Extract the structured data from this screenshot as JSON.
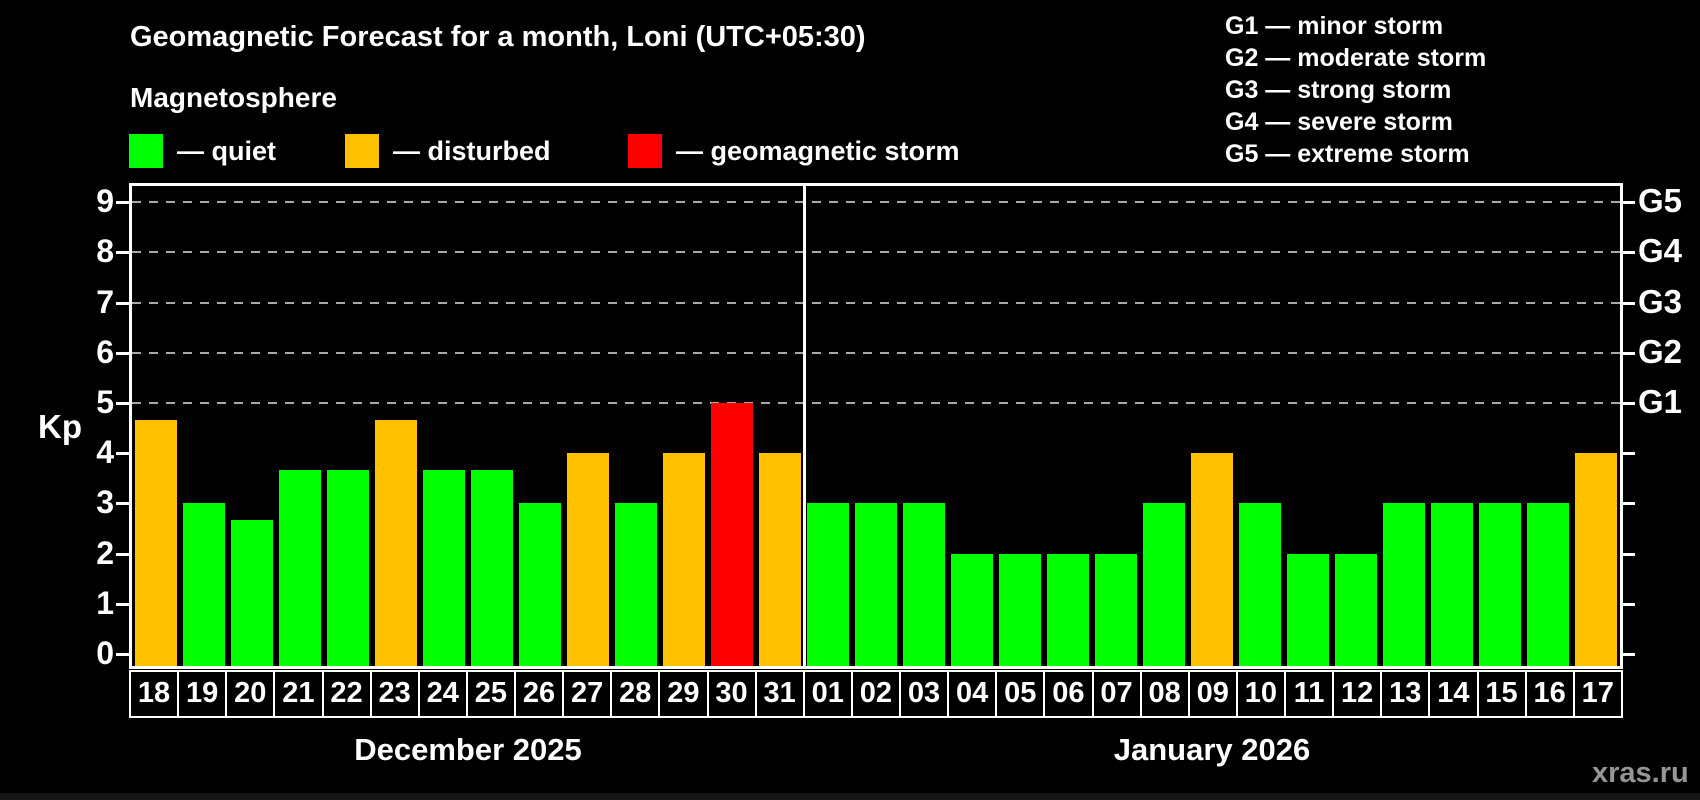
{
  "watermark": "xras.ru",
  "g_legend": [
    "G1 — minor storm",
    "G2 — moderate storm",
    "G3 — strong storm",
    "G4 — severe storm",
    "G5 — extreme storm"
  ],
  "chart_data": {
    "type": "bar",
    "title": "Geomagnetic Forecast for a month, Loni (UTC+05:30)",
    "subtitle": "Magnetosphere",
    "ylabel": "Kp",
    "ylim": [
      0,
      9
    ],
    "y_ticks": [
      0,
      1,
      2,
      3,
      4,
      5,
      6,
      7,
      8,
      9
    ],
    "gridlines_at": [
      5,
      6,
      7,
      8,
      9
    ],
    "grid": "dashed",
    "right_axis": [
      {
        "value": 5,
        "label": "G1"
      },
      {
        "value": 6,
        "label": "G2"
      },
      {
        "value": 7,
        "label": "G3"
      },
      {
        "value": 8,
        "label": "G4"
      },
      {
        "value": 9,
        "label": "G5"
      }
    ],
    "colors": {
      "quiet": "#00ff00",
      "disturbed": "#ffc000",
      "storm": "#ff0000",
      "axis": "#ffffff",
      "gridline": "#a9a9a9",
      "background": "#000000",
      "watermark": "#969696"
    },
    "legend": [
      {
        "key": "quiet",
        "label": "— quiet"
      },
      {
        "key": "disturbed",
        "label": "— disturbed"
      },
      {
        "key": "storm",
        "label": "— geomagnetic storm"
      }
    ],
    "series": [
      {
        "month": "December 2025",
        "points": [
          {
            "day": "18",
            "kp": 4.67,
            "status": "disturbed"
          },
          {
            "day": "19",
            "kp": 3.0,
            "status": "quiet"
          },
          {
            "day": "20",
            "kp": 2.67,
            "status": "quiet"
          },
          {
            "day": "21",
            "kp": 3.67,
            "status": "quiet"
          },
          {
            "day": "22",
            "kp": 3.67,
            "status": "quiet"
          },
          {
            "day": "23",
            "kp": 4.67,
            "status": "disturbed"
          },
          {
            "day": "24",
            "kp": 3.67,
            "status": "quiet"
          },
          {
            "day": "25",
            "kp": 3.67,
            "status": "quiet"
          },
          {
            "day": "26",
            "kp": 3.0,
            "status": "quiet"
          },
          {
            "day": "27",
            "kp": 4.0,
            "status": "disturbed"
          },
          {
            "day": "28",
            "kp": 3.0,
            "status": "quiet"
          },
          {
            "day": "29",
            "kp": 4.0,
            "status": "disturbed"
          },
          {
            "day": "30",
            "kp": 5.0,
            "status": "storm"
          },
          {
            "day": "31",
            "kp": 4.0,
            "status": "disturbed"
          }
        ]
      },
      {
        "month": "January 2026",
        "points": [
          {
            "day": "01",
            "kp": 3.0,
            "status": "quiet"
          },
          {
            "day": "02",
            "kp": 3.0,
            "status": "quiet"
          },
          {
            "day": "03",
            "kp": 3.0,
            "status": "quiet"
          },
          {
            "day": "04",
            "kp": 2.0,
            "status": "quiet"
          },
          {
            "day": "05",
            "kp": 2.0,
            "status": "quiet"
          },
          {
            "day": "06",
            "kp": 2.0,
            "status": "quiet"
          },
          {
            "day": "07",
            "kp": 2.0,
            "status": "quiet"
          },
          {
            "day": "08",
            "kp": 3.0,
            "status": "quiet"
          },
          {
            "day": "09",
            "kp": 4.0,
            "status": "disturbed"
          },
          {
            "day": "10",
            "kp": 3.0,
            "status": "quiet"
          },
          {
            "day": "11",
            "kp": 2.0,
            "status": "quiet"
          },
          {
            "day": "12",
            "kp": 2.0,
            "status": "quiet"
          },
          {
            "day": "13",
            "kp": 3.0,
            "status": "quiet"
          },
          {
            "day": "14",
            "kp": 3.0,
            "status": "quiet"
          },
          {
            "day": "15",
            "kp": 3.0,
            "status": "quiet"
          },
          {
            "day": "16",
            "kp": 3.0,
            "status": "quiet"
          },
          {
            "day": "17",
            "kp": 4.0,
            "status": "disturbed"
          }
        ]
      }
    ]
  }
}
